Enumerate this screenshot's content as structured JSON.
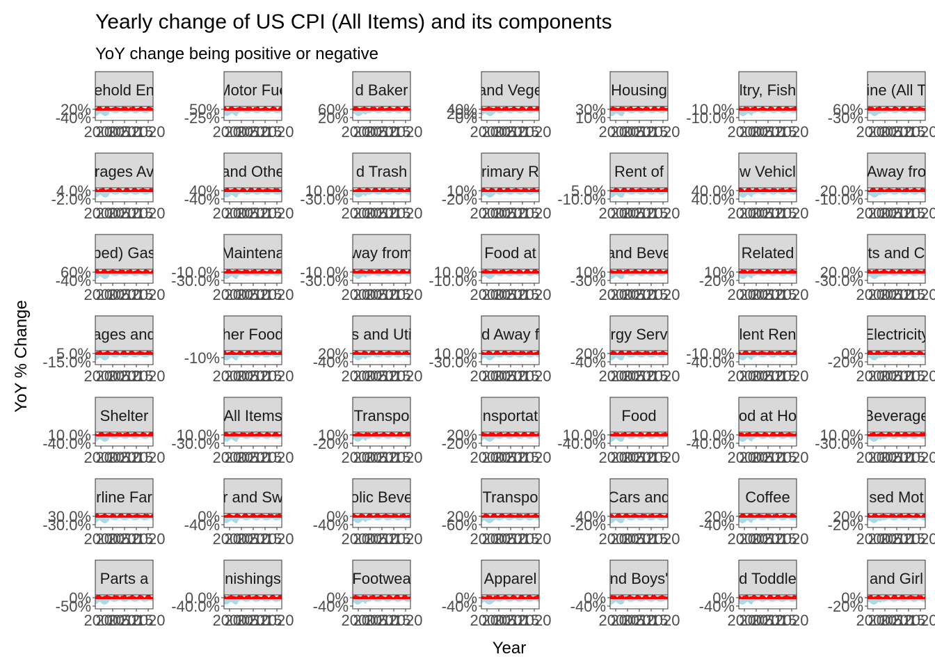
{
  "chart_data": {
    "type": "area",
    "title": "Yearly change of US CPI (All Items) and its components",
    "subtitle": "YoY change being positive or negative",
    "xlabel": "Year",
    "ylabel": "YoY % Change",
    "x_tick_labels": [
      "2000",
      "2005",
      "2010",
      "2015",
      "2020"
    ],
    "colors": {
      "positive": "#ff0000",
      "negative": "#add8e6",
      "strip": "#d9d9d9",
      "grid": "#ebebeb"
    },
    "grid": true,
    "facets": [
      {
        "strip": "ehold En",
        "y_ticks": [
          "20%",
          "-40%"
        ]
      },
      {
        "strip": "Motor Fue",
        "y_ticks": [
          "50%",
          "-25%"
        ]
      },
      {
        "strip": "d Baker",
        "y_ticks": [
          "60%",
          "20%"
        ]
      },
      {
        "strip": "and Vege",
        "y_ticks": [
          "40%",
          "20%",
          "0%"
        ]
      },
      {
        "strip": "Housing",
        "y_ticks": [
          "30%",
          "10%"
        ]
      },
      {
        "strip": "ltry, Fish",
        "y_ticks": [
          "10.0%",
          "-10.0%"
        ]
      },
      {
        "strip": "ine (All T",
        "y_ticks": [
          "60%",
          "-30%"
        ]
      },
      {
        "strip": "rages Av",
        "y_ticks": [
          "4.0%",
          "-2.0%"
        ]
      },
      {
        "strip": "and Othe",
        "y_ticks": [
          "40%",
          "-40%"
        ]
      },
      {
        "strip": "d Trash",
        "y_ticks": [
          "10.0%",
          "-30.0%"
        ]
      },
      {
        "strip": "rimary R",
        "y_ticks": [
          "10%",
          "-20%"
        ]
      },
      {
        "strip": "Rent of",
        "y_ticks": [
          "5.0%",
          "-10.0%"
        ]
      },
      {
        "strip": "w Vehicl",
        "y_ticks": [
          "40.0%",
          "40.0%"
        ]
      },
      {
        "strip": "Away fro",
        "y_ticks": [
          "20.0%",
          "-10.0%"
        ]
      },
      {
        "strip": "ped) Gas",
        "y_ticks": [
          "60%",
          "-40%"
        ]
      },
      {
        "strip": "Maintena",
        "y_ticks": [
          "-10.0%",
          "-30.0%"
        ]
      },
      {
        "strip": "way from",
        "y_ticks": [
          "-10.0%",
          "-30.0%"
        ]
      },
      {
        "strip": "Food at",
        "y_ticks": [
          "10.0%",
          "-10.0%"
        ]
      },
      {
        "strip": "and Beve",
        "y_ticks": [
          "10%",
          "-30%"
        ]
      },
      {
        "strip": "Related",
        "y_ticks": [
          "10%",
          "-20%"
        ]
      },
      {
        "strip": "ts and C",
        "y_ticks": [
          "20.0%",
          "-30.0%"
        ]
      },
      {
        "strip": "ages and",
        "y_ticks": [
          "5.0%",
          "-15.0%"
        ]
      },
      {
        "strip": "her Food",
        "y_ticks": [
          "-10%"
        ]
      },
      {
        "strip": "s and Uti",
        "y_ticks": [
          "20%",
          "-40%"
        ]
      },
      {
        "strip": "d Away f",
        "y_ticks": [
          "10.0%",
          "-30.0%"
        ]
      },
      {
        "strip": "rgy Serv",
        "y_ticks": [
          "20%",
          "-40%"
        ]
      },
      {
        "strip": "lent Ren",
        "y_ticks": [
          "-10.0%",
          "-40.0%"
        ]
      },
      {
        "strip": "Electricity",
        "y_ticks": [
          "0%",
          "-20%"
        ]
      },
      {
        "strip": "Shelter",
        "y_ticks": [
          "10.0%",
          "-40.0%"
        ]
      },
      {
        "strip": "All Items",
        "y_ticks": [
          "10.0%",
          "-30.0%"
        ]
      },
      {
        "strip": "Transpo",
        "y_ticks": [
          "10%",
          "-20%"
        ]
      },
      {
        "strip": "nsportat",
        "y_ticks": [
          "20%",
          "-20%"
        ]
      },
      {
        "strip": "Food",
        "y_ticks": [
          "10.0%",
          "-40.0%"
        ]
      },
      {
        "strip": "od at Ho",
        "y_ticks": [
          "10.0%",
          "-40.0%"
        ]
      },
      {
        "strip": "Beverage",
        "y_ticks": [
          "10.0%",
          "-30.0%"
        ]
      },
      {
        "strip": "rline Far",
        "y_ticks": [
          "30.0%",
          "-30.0%"
        ]
      },
      {
        "strip": "r and Sw",
        "y_ticks": [
          "0%",
          "-40%"
        ]
      },
      {
        "strip": "olic Beve",
        "y_ticks": [
          "0%",
          "-40%"
        ]
      },
      {
        "strip": "Transpo",
        "y_ticks": [
          "20%",
          "-60%"
        ]
      },
      {
        "strip": "Cars and",
        "y_ticks": [
          "40%",
          "-20%"
        ]
      },
      {
        "strip": "Coffee",
        "y_ticks": [
          "20%",
          "-40%"
        ]
      },
      {
        "strip": "sed Mot",
        "y_ticks": [
          "20%",
          "-20%"
        ]
      },
      {
        "strip": "Parts a",
        "y_ticks": [
          "0%",
          "-50%"
        ]
      },
      {
        "strip": "nishings",
        "y_ticks": [
          "0.0%",
          "-40.0%"
        ]
      },
      {
        "strip": "Footwea",
        "y_ticks": [
          "0%",
          "-40%"
        ]
      },
      {
        "strip": "Apparel",
        "y_ticks": [
          "0%",
          "-40%"
        ]
      },
      {
        "strip": "nd Boys'",
        "y_ticks": [
          "0%",
          "-40%"
        ]
      },
      {
        "strip": "d Toddle",
        "y_ticks": [
          "0%",
          "-40%"
        ]
      },
      {
        "strip": "and Girl",
        "y_ticks": [
          "0%",
          "-20%"
        ]
      }
    ]
  }
}
